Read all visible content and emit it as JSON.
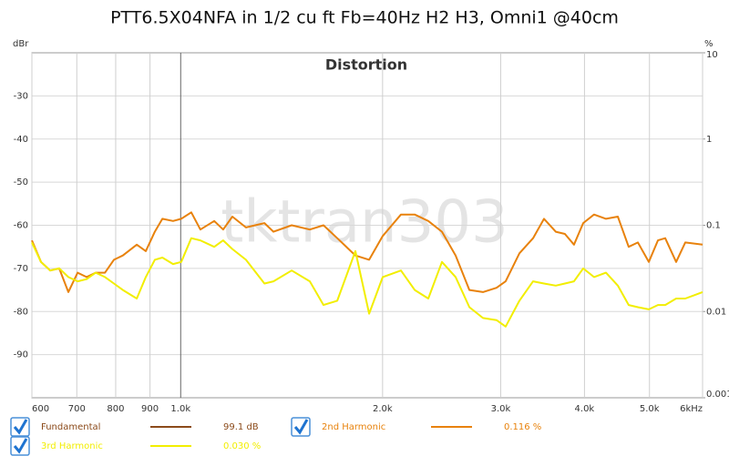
{
  "chart_data": {
    "type": "line",
    "title": "PTT6.5X04NFA in 1/2 cu ft Fb=40Hz H2 H3, Omni1 @40cm",
    "subtitle": "Distortion",
    "watermark": "tktran303",
    "ylabel": "dBr",
    "y2label": "%",
    "xscale": "log",
    "y2scale": "log",
    "grid": true,
    "xlim": [
      600,
      6000
    ],
    "xticks": [
      600,
      700,
      800,
      900,
      {
        "value": 1000,
        "label": "1.0k"
      },
      {
        "value": 2000,
        "label": "2.0k"
      },
      {
        "value": 3000,
        "label": "3.0k"
      },
      {
        "value": 4000,
        "label": "4.0k"
      },
      {
        "value": 5000,
        "label": "5.0k"
      },
      {
        "value": 6000,
        "label": "6kHz"
      }
    ],
    "ylim": [
      -100,
      -20
    ],
    "yticks": [
      -30,
      -40,
      -50,
      -60,
      -70,
      -80,
      -90
    ],
    "y2lim": [
      0.001,
      10
    ],
    "y2ticks": [
      10,
      1,
      0.1,
      0.01,
      0.001
    ],
    "x": [
      600,
      619,
      639,
      659,
      680,
      702,
      724,
      747,
      771,
      795,
      820,
      860,
      887,
      915,
      939,
      974,
      1002,
      1037,
      1070,
      1122,
      1157,
      1194,
      1251,
      1333,
      1375,
      1464,
      1558,
      1633,
      1712,
      1822,
      1910,
      2001,
      2130,
      2233,
      2340,
      2452,
      2570,
      2694,
      2823,
      2958,
      3052,
      3199,
      3353,
      3481,
      3625,
      3740,
      3859,
      3982,
      4134,
      4307,
      4485,
      4656,
      4805,
      4988,
      5147,
      5278,
      5479,
      5653,
      6000
    ],
    "fundamental": {
      "name": "Fundamental",
      "color": "#8b4a1a",
      "reading": "99.1 dB"
    },
    "series": [
      {
        "name": "2nd Harmonic",
        "color": "#e8820c",
        "reading": "0.116 %",
        "values": [
          -63.5,
          -68.5,
          -70.5,
          -70,
          -75.5,
          -71,
          -72,
          -71,
          -71,
          -68,
          -67,
          -64.5,
          -66,
          -61.5,
          -58.5,
          -59,
          -58.5,
          -57,
          -61,
          -59,
          -61,
          -58,
          -60.5,
          -59.5,
          -61.5,
          -60,
          -61,
          -60,
          -63,
          -67,
          -68,
          -62.5,
          -57.5,
          -57.5,
          -59,
          -61.5,
          -67,
          -75,
          -75.5,
          -74.5,
          -73,
          -66.5,
          -63,
          -58.5,
          -61.5,
          -62,
          -64.5,
          -59.5,
          -57.5,
          -58.5,
          -58,
          -65,
          -64,
          -68.5,
          -63.5,
          -63,
          -68.5,
          -64,
          -64.5
        ]
      },
      {
        "name": "3rd Harmonic",
        "color": "#f2ee00",
        "reading": "0.030 %",
        "values": [
          -64,
          -68.5,
          -70.5,
          -70,
          -72,
          -73,
          -72.5,
          -71,
          -72,
          -73.5,
          -75,
          -77,
          -72,
          -68,
          -67.5,
          -69,
          -68.5,
          -63,
          -63.5,
          -65,
          -63.5,
          -65.5,
          -68,
          -73.5,
          -73,
          -70.5,
          -73,
          -78.5,
          -77.5,
          -66,
          -80.5,
          -72,
          -70.5,
          -75,
          -77,
          -68.5,
          -72,
          -79,
          -81.5,
          -82,
          -83.5,
          -77.5,
          -73,
          -73.5,
          -74,
          -73.5,
          -73,
          -70,
          -72,
          -71,
          -74,
          -78.5,
          -79,
          -79.5,
          -78.5,
          -78.5,
          -77,
          -77,
          -75.5
        ]
      }
    ]
  }
}
